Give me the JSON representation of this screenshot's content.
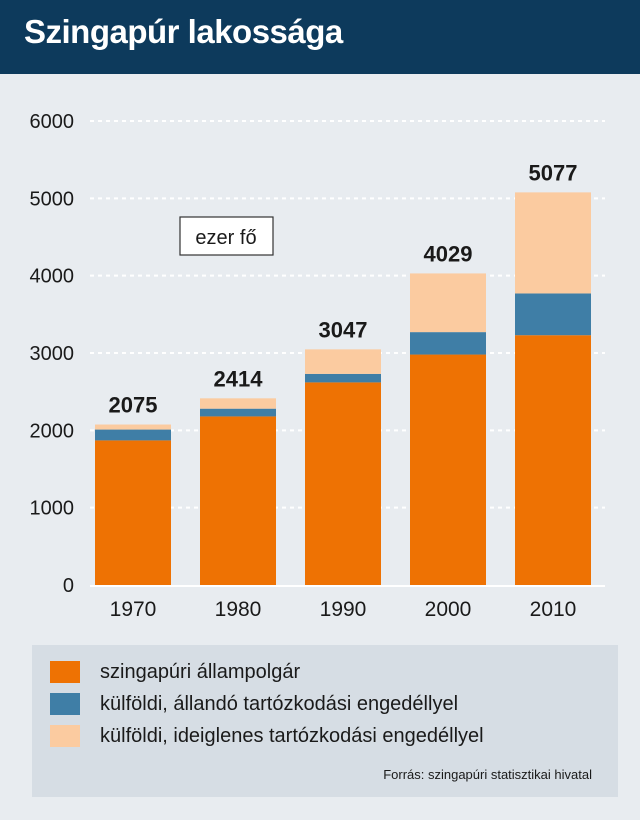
{
  "header": {
    "title": "Szingapúr lakossága"
  },
  "colors": {
    "header_bg": "#0d3a5c",
    "citizen": "#ee7203",
    "permanent": "#3f7ea6",
    "temporary": "#fbcba0",
    "background": "#e8ecf0",
    "legend_bg": "#d6dde4"
  },
  "chart_data": {
    "type": "bar",
    "stacked": true,
    "unit_box": "ezer fő",
    "categories": [
      "1970",
      "1980",
      "1990",
      "2000",
      "2010"
    ],
    "totals": [
      2075,
      2414,
      3047,
      4029,
      5077
    ],
    "total_labels": [
      "2075",
      "2414",
      "3047",
      "4029",
      "5077"
    ],
    "series": [
      {
        "name": "szingapúri állampolgár",
        "color": "#ee7203",
        "values": [
          1870,
          2180,
          2620,
          2980,
          3230
        ]
      },
      {
        "name": "külföldi, állandó tartózkodási engedéllyel",
        "color": "#3f7ea6",
        "values": [
          140,
          100,
          110,
          290,
          540
        ]
      },
      {
        "name": "külföldi, ideiglenes tartózkodási engedéllyel",
        "color": "#fbcba0",
        "values": [
          65,
          134,
          317,
          759,
          1307
        ]
      }
    ],
    "ylim": [
      0,
      6000
    ],
    "yticks": [
      "0",
      "1000",
      "2000",
      "3000",
      "4000",
      "5000",
      "6000"
    ],
    "ytick_values": [
      0,
      1000,
      2000,
      3000,
      4000,
      5000,
      6000
    ],
    "grid": "dotted"
  },
  "legend": {
    "items": [
      {
        "label": "szingapúri állampolgár",
        "color": "#ee7203"
      },
      {
        "label": "külföldi, állandó tartózkodási engedéllyel",
        "color": "#3f7ea6"
      },
      {
        "label": "külföldi, ideiglenes tartózkodási engedéllyel",
        "color": "#fbcba0"
      }
    ],
    "source": "Forrás: szingapúri statisztikai hivatal"
  }
}
